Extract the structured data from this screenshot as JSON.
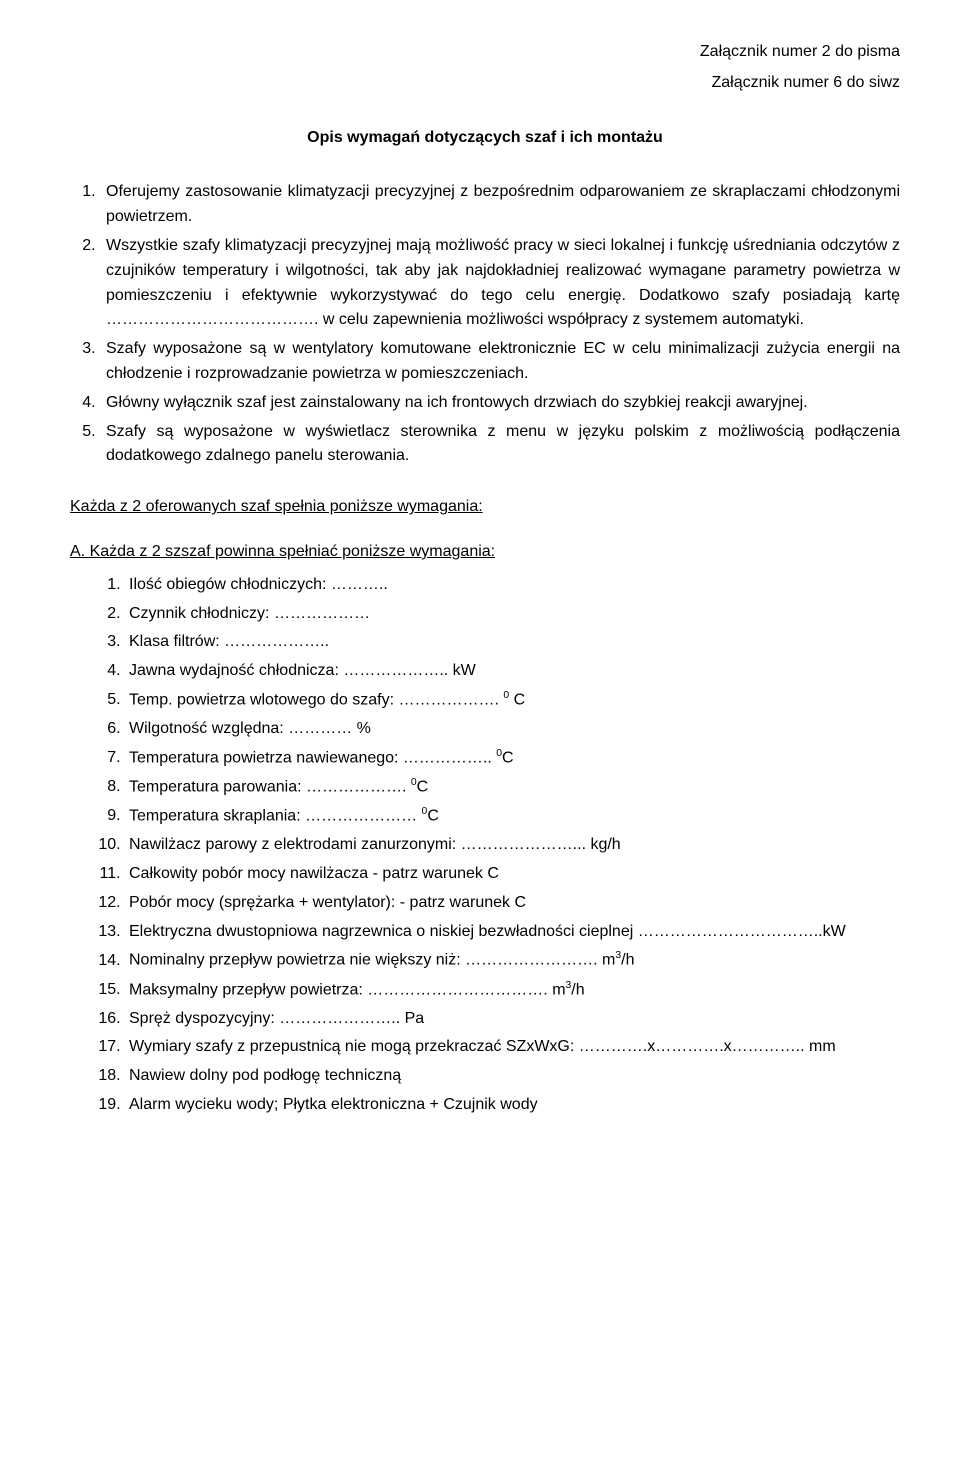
{
  "header": {
    "attachment1": "Załącznik numer 2 do pisma",
    "attachment2": "Załącznik numer 6 do siwz"
  },
  "title": "Opis wymagań dotyczących szaf i ich montażu",
  "mainList": {
    "item1": "Oferujemy zastosowanie klimatyzacji precyzyjnej z bezpośrednim odparowaniem ze skraplaczami chłodzonymi powietrzem.",
    "item2": "Wszystkie szafy klimatyzacji precyzyjnej mają możliwość pracy w sieci lokalnej i funkcję uśredniania odczytów z czujników temperatury i wilgotności, tak aby jak najdokładniej realizować wymagane parametry powietrza w pomieszczeniu i efektywnie wykorzystywać do tego celu energię. Dodatkowo szafy posiadają kartę …………………………………. w celu zapewnienia możliwości współpracy z systemem automatyki.",
    "item3": "Szafy wyposażone są w wentylatory komutowane elektronicznie EC w celu minimalizacji zużycia energii na chłodzenie i rozprowadzanie powietrza w pomieszczeniach.",
    "item4": "Główny wyłącznik szaf jest zainstalowany na ich frontowych drzwiach do szybkiej reakcji awaryjnej.",
    "item5": "Szafy są wyposażone w wyświetlacz sterownika z menu w języku polskim z możliwością podłączenia dodatkowego zdalnego panelu sterowania."
  },
  "sectionHeading": "Każda z 2 oferowanych szaf spełnia poniższe wymagania:",
  "subHeading": "A. Każda z 2 szszaf powinna spełniać poniższe wymagania:",
  "subList": {
    "i1": "Ilość obiegów chłodniczych: ………..",
    "i2": "Czynnik chłodniczy: ………………",
    "i3": "Klasa filtrów: ………………..",
    "i4": "Jawna wydajność chłodnicza: ……………….. kW",
    "i5_a": "Temp. powietrza wlotowego do szafy: ………………. ",
    "i5_b": " C",
    "i6": "Wilgotność względna: ………… %",
    "i7_a": "Temperatura powietrza nawiewanego: …………….. ",
    "i7_b": "C",
    "i8_a": "Temperatura parowania: ………………. ",
    "i8_b": "C",
    "i9_a": "Temperatura skraplania: ………………… ",
    "i9_b": "C",
    "i10": "Nawilżacz parowy z elektrodami zanurzonymi: …………………... kg/h",
    "i11": "Całkowity pobór mocy nawilżacza  - patrz warunek C",
    "i12": "Pobór mocy (sprężarka + wentylator): - patrz warunek C",
    "i13": "Elektryczna dwustopniowa nagrzewnica o niskiej bezwładności cieplnej ……………………………..kW",
    "i14_a": "Nominalny przepływ powietrza nie większy niż: ……………………. m",
    "i14_b": "/h",
    "i15_a": "Maksymalny przepływ powietrza: ……………………………. m",
    "i15_b": "/h",
    "i16": "Spręż dyspozycyjny: ………………….. Pa",
    "i17": "Wymiary szafy z przepustnicą nie mogą przekraczać SZxWxG: ………….x………….x………….. mm",
    "i18": "Nawiew dolny pod podłogę techniczną",
    "i19": "Alarm wycieku wody; Płytka elektroniczna + Czujnik wody",
    "sup0": "0",
    "sup3": "3"
  }
}
